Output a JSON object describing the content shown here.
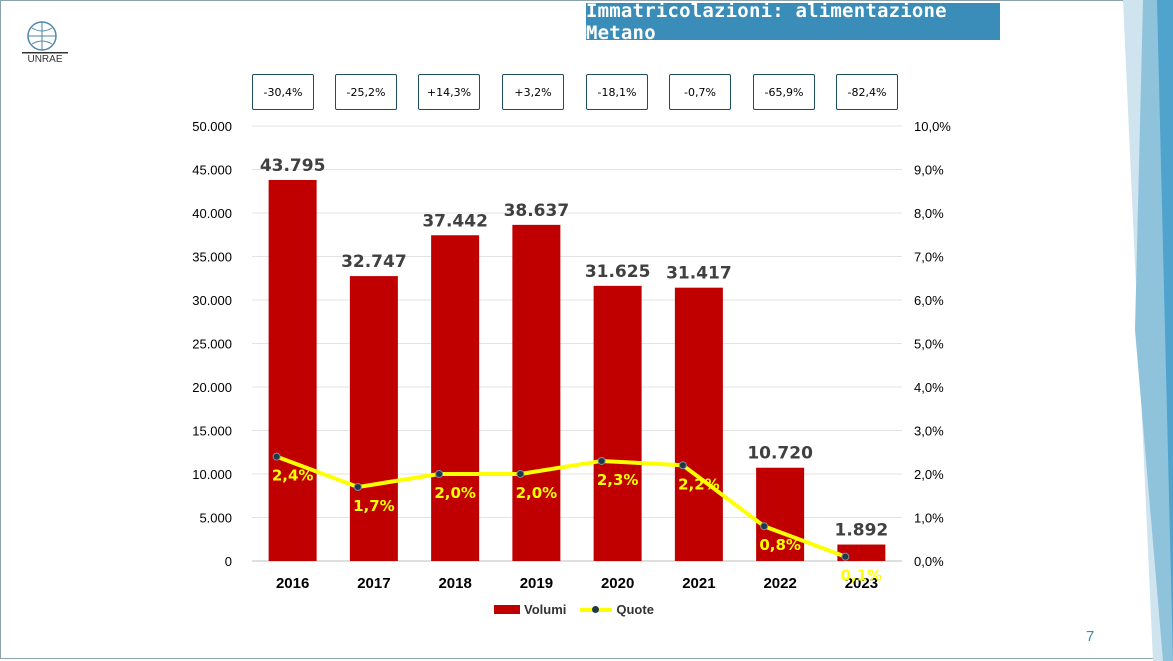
{
  "slide": {
    "title": "Immatricolazioni: alimentazione Metano",
    "logo_text": "UNRAE",
    "page_number": "7"
  },
  "variations": [
    "-30,4%",
    "-25,2%",
    "+14,3%",
    "+3,2%",
    "-18,1%",
    "-0,7%",
    "-65,9%",
    "-82,4%"
  ],
  "legend": {
    "bars": "Volumi",
    "line": "Quote"
  },
  "colors": {
    "bar": "#c00000",
    "line": "#ffff00",
    "marker": "#1e3a4a",
    "title_bg": "#3a8db8",
    "line_label": "#ffff00",
    "bar_label": "#404040"
  },
  "chart_data": {
    "type": "bar",
    "categories": [
      "2016",
      "2017",
      "2018",
      "2019",
      "2020",
      "2021",
      "2022",
      "2023"
    ],
    "series": [
      {
        "name": "Volumi",
        "type": "bar",
        "axis": "left",
        "values": [
          43795,
          32747,
          37442,
          38637,
          31625,
          31417,
          10720,
          1892
        ],
        "labels": [
          "43.795",
          "32.747",
          "37.442",
          "38.637",
          "31.625",
          "31.417",
          "10.720",
          "1.892"
        ]
      },
      {
        "name": "Quote",
        "type": "line",
        "axis": "right",
        "values": [
          2.4,
          1.7,
          2.0,
          2.0,
          2.3,
          2.2,
          0.8,
          0.1
        ],
        "labels": [
          "2,4%",
          "1,7%",
          "2,0%",
          "2,0%",
          "2,3%",
          "2,2%",
          "0,8%",
          "0,1%"
        ]
      }
    ],
    "y_left": {
      "min": 0,
      "max": 50000,
      "step": 5000,
      "tick_labels": [
        "0",
        "5.000",
        "10.000",
        "15.000",
        "20.000",
        "25.000",
        "30.000",
        "35.000",
        "40.000",
        "45.000",
        "50.000"
      ]
    },
    "y_right": {
      "min": 0,
      "max": 10,
      "step": 1,
      "tick_labels": [
        "0,0%",
        "1,0%",
        "2,0%",
        "3,0%",
        "4,0%",
        "5,0%",
        "6,0%",
        "7,0%",
        "8,0%",
        "9,0%",
        "10,0%"
      ]
    },
    "grid": true,
    "legend_position": "bottom"
  }
}
